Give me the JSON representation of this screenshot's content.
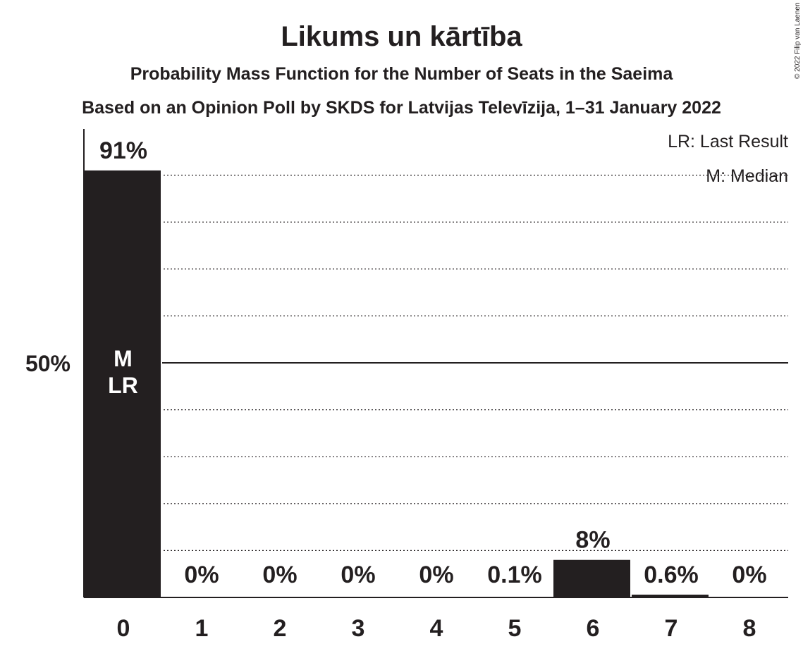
{
  "chart_data": {
    "type": "bar",
    "title": "Likums un kārtība",
    "subtitle1": "Probability Mass Function for the Number of Seats in the Saeima",
    "subtitle2": "Based on an Opinion Poll by SKDS for Latvijas Televīzija, 1–31 January 2022",
    "categories": [
      "0",
      "1",
      "2",
      "3",
      "4",
      "5",
      "6",
      "7",
      "8"
    ],
    "values": [
      91,
      0,
      0,
      0,
      0,
      0.1,
      8,
      0.6,
      0
    ],
    "value_labels": [
      "91%",
      "0%",
      "0%",
      "0%",
      "0%",
      "0.1%",
      "8%",
      "0.6%",
      "0%"
    ],
    "ylim": [
      0,
      100
    ],
    "y_ticks": [
      {
        "value": 50,
        "label": "50%"
      }
    ],
    "gridlines": [
      10,
      20,
      30,
      40,
      60,
      70,
      80,
      90
    ],
    "median_index": 0,
    "last_result_index": 0,
    "bar_markers": [
      "M",
      "LR"
    ],
    "legend": [
      "LR: Last Result",
      "M: Median"
    ],
    "legend_position": "top-right",
    "bar_color": "#231f20",
    "text_color": "#231f20",
    "copyright": "© 2022 Filip van Laenen"
  }
}
